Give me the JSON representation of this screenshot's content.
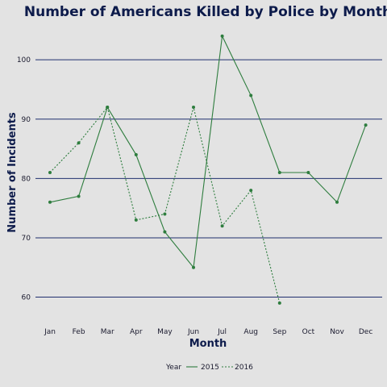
{
  "chart_data": {
    "type": "line",
    "title": "Number of Americans Killed by Police by Month",
    "xlabel": "Month",
    "ylabel": "Number of Incidents",
    "categories": [
      "Jan",
      "Feb",
      "Mar",
      "Apr",
      "May",
      "Jun",
      "Jul",
      "Aug",
      "Sep",
      "Oct",
      "Nov",
      "Dec"
    ],
    "ylim": [
      56,
      106
    ],
    "yticks": [
      60,
      70,
      80,
      90,
      100
    ],
    "grid": "horizontal",
    "legend": {
      "title": "Year",
      "placement": "bottom"
    },
    "series": [
      {
        "name": "2015",
        "style": "solid",
        "values": [
          76,
          77,
          92,
          84,
          71,
          65,
          104,
          94,
          81,
          81,
          76,
          89
        ]
      },
      {
        "name": "2016",
        "style": "dotted",
        "values": [
          81,
          86,
          92,
          73,
          74,
          92,
          72,
          78,
          59,
          null,
          null,
          null
        ]
      }
    ],
    "colors": {
      "line": "#2e7d3e",
      "grid": "#1f2f6e",
      "background": "#e3e3e3",
      "text": "#0d1b4b"
    }
  }
}
